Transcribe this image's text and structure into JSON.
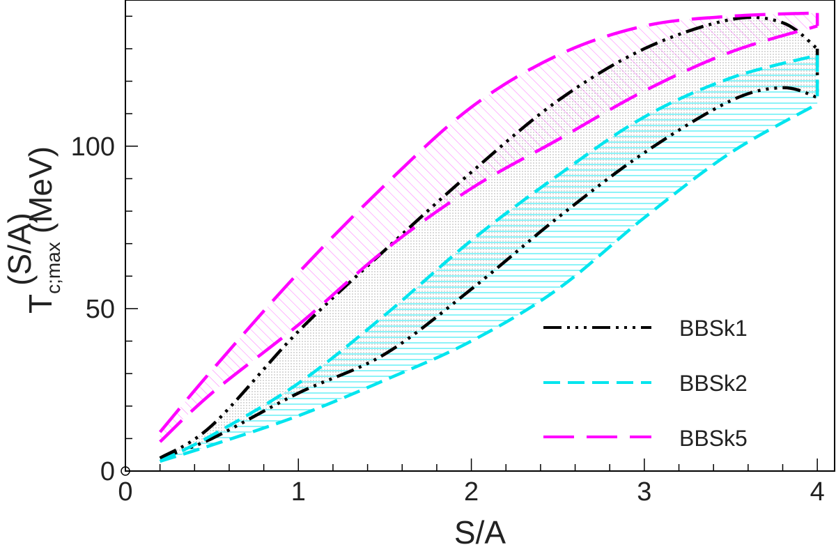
{
  "chart_data": {
    "type": "line",
    "xlabel": "S/A",
    "ylabel": {
      "main": "T",
      "subscript": "c;max",
      "superscript": "(S/A)",
      "unit": "(MeV)"
    },
    "xlim": [
      0,
      4.1
    ],
    "ylim": [
      0,
      145
    ],
    "x_ticks": [
      "0",
      "1",
      "2",
      "3",
      "4"
    ],
    "y_ticks": [
      "0",
      "50",
      "100"
    ],
    "grid": false,
    "legend_position": "bottom-right",
    "series": [
      {
        "name": "BBSk1",
        "color": "#000000",
        "style": "dash-dot-dot",
        "hatch": "dots",
        "upper": [
          [
            0.2,
            4
          ],
          [
            0.5,
            14
          ],
          [
            1,
            43
          ],
          [
            1.5,
            68
          ],
          [
            2,
            92
          ],
          [
            2.5,
            114
          ],
          [
            3,
            130
          ],
          [
            3.5,
            139
          ],
          [
            3.8,
            138
          ],
          [
            4,
            130
          ]
        ],
        "lower": [
          [
            0.2,
            4
          ],
          [
            0.5,
            10
          ],
          [
            1,
            24
          ],
          [
            1.5,
            36
          ],
          [
            2,
            56
          ],
          [
            2.5,
            78
          ],
          [
            3,
            98
          ],
          [
            3.5,
            114
          ],
          [
            3.8,
            118
          ],
          [
            4,
            115
          ]
        ]
      },
      {
        "name": "BBSk2",
        "color": "#00e5ee",
        "style": "dash",
        "hatch": "horizontal",
        "upper": [
          [
            0.2,
            3
          ],
          [
            0.5,
            11
          ],
          [
            1,
            27
          ],
          [
            1.5,
            48
          ],
          [
            2,
            71
          ],
          [
            2.5,
            91
          ],
          [
            3,
            109
          ],
          [
            3.5,
            121
          ],
          [
            4,
            128
          ]
        ],
        "lower": [
          [
            0.2,
            3
          ],
          [
            0.5,
            8
          ],
          [
            1,
            17
          ],
          [
            1.5,
            28
          ],
          [
            2,
            40
          ],
          [
            2.5,
            56
          ],
          [
            3,
            78
          ],
          [
            3.5,
            98
          ],
          [
            4,
            113
          ]
        ]
      },
      {
        "name": "BBSk5",
        "color": "#ff00ff",
        "style": "long-dash",
        "hatch": "diagonal",
        "upper": [
          [
            0.2,
            12
          ],
          [
            0.5,
            31
          ],
          [
            1,
            61
          ],
          [
            1.5,
            88
          ],
          [
            2,
            112
          ],
          [
            2.5,
            128
          ],
          [
            3,
            137
          ],
          [
            3.5,
            140
          ],
          [
            4,
            141
          ]
        ],
        "lower": [
          [
            0.2,
            9
          ],
          [
            0.5,
            24
          ],
          [
            1,
            45
          ],
          [
            1.5,
            68
          ],
          [
            2,
            87
          ],
          [
            2.5,
            102
          ],
          [
            3,
            117
          ],
          [
            3.5,
            129
          ],
          [
            4,
            137
          ]
        ]
      }
    ]
  }
}
